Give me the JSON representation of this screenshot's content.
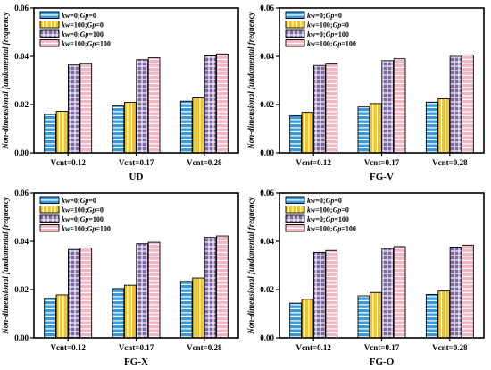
{
  "chart_data": [
    {
      "type": "bar",
      "title": "UD",
      "ylabel": "Non-dimensional fundamental frequency",
      "ylim": [
        0,
        0.06
      ],
      "yticks": [
        "0.00",
        "0.02",
        "0.04",
        "0.06"
      ],
      "categories": [
        "Vcnt=0.12",
        "Vcnt=0.17",
        "Vcnt=0.28"
      ],
      "legend_position": "top-left",
      "series": [
        {
          "name": "kw=0;Gp=0",
          "color": "#3a9ad9",
          "pattern": "horizontal-lines",
          "values": [
            0.016,
            0.0194,
            0.0214
          ]
        },
        {
          "name": "kw=100;Gp=0",
          "color": "#f5c518",
          "pattern": "vertical-lines",
          "values": [
            0.0172,
            0.0209,
            0.0228
          ]
        },
        {
          "name": "kw=0;Gp=100",
          "color": "#8068a8",
          "pattern": "grid",
          "values": [
            0.0364,
            0.0386,
            0.0402
          ]
        },
        {
          "name": "kw=100;Gp=100",
          "color": "#f4b6c2",
          "pattern": "horizontal-lines",
          "values": [
            0.037,
            0.0394,
            0.041
          ]
        }
      ]
    },
    {
      "type": "bar",
      "title": "FG-V",
      "ylabel": "Non-dimensional fundamental frequency",
      "ylim": [
        0,
        0.06
      ],
      "yticks": [
        "0.00",
        "0.02",
        "0.04",
        "0.06"
      ],
      "categories": [
        "Vcnt=0.12",
        "Vcnt=0.17",
        "Vcnt=0.28"
      ],
      "legend_position": "top-left",
      "series": [
        {
          "name": "kw=0;Gp=0",
          "color": "#3a9ad9",
          "pattern": "horizontal-lines",
          "values": [
            0.0154,
            0.019,
            0.021
          ]
        },
        {
          "name": "kw=100;Gp=0",
          "color": "#f5c518",
          "pattern": "vertical-lines",
          "values": [
            0.0168,
            0.0204,
            0.0224
          ]
        },
        {
          "name": "kw=0;Gp=100",
          "color": "#8068a8",
          "pattern": "grid",
          "values": [
            0.0362,
            0.0382,
            0.04
          ]
        },
        {
          "name": "kw=100;Gp=100",
          "color": "#f4b6c2",
          "pattern": "horizontal-lines",
          "values": [
            0.0368,
            0.039,
            0.0406
          ]
        }
      ]
    },
    {
      "type": "bar",
      "title": "FG-X",
      "ylabel": "Non-dimensional fundamental frequency",
      "ylim": [
        0,
        0.06
      ],
      "yticks": [
        "0.00",
        "0.02",
        "0.04",
        "0.06"
      ],
      "categories": [
        "Vcnt=0.12",
        "Vcnt=0.17",
        "Vcnt=0.28"
      ],
      "legend_position": "top-left",
      "series": [
        {
          "name": "kw=0;Gp=0",
          "color": "#3a9ad9",
          "pattern": "horizontal-lines",
          "values": [
            0.0164,
            0.0204,
            0.0234
          ]
        },
        {
          "name": "kw=100;Gp=0",
          "color": "#f5c518",
          "pattern": "vertical-lines",
          "values": [
            0.0178,
            0.0218,
            0.0248
          ]
        },
        {
          "name": "kw=0;Gp=100",
          "color": "#8068a8",
          "pattern": "grid",
          "values": [
            0.0366,
            0.039,
            0.0416
          ]
        },
        {
          "name": "kw=100;Gp=100",
          "color": "#f4b6c2",
          "pattern": "horizontal-lines",
          "values": [
            0.0372,
            0.0396,
            0.0422
          ]
        }
      ]
    },
    {
      "type": "bar",
      "title": "FG-O",
      "ylabel": "Non-dimensional fundamental frequency",
      "ylim": [
        0,
        0.06
      ],
      "yticks": [
        "0.00",
        "0.02",
        "0.04",
        "0.06"
      ],
      "categories": [
        "Vcnt=0.12",
        "Vcnt=0.17",
        "Vcnt=0.28"
      ],
      "legend_position": "top-left",
      "series": [
        {
          "name": "kw=0;Gp=0",
          "color": "#3a9ad9",
          "pattern": "horizontal-lines",
          "values": [
            0.0144,
            0.0174,
            0.018
          ]
        },
        {
          "name": "kw=100;Gp=0",
          "color": "#f5c518",
          "pattern": "vertical-lines",
          "values": [
            0.016,
            0.0188,
            0.0194
          ]
        },
        {
          "name": "kw=0;Gp=100",
          "color": "#8068a8",
          "pattern": "grid",
          "values": [
            0.0354,
            0.037,
            0.0376
          ]
        },
        {
          "name": "kw=100;Gp=100",
          "color": "#f4b6c2",
          "pattern": "horizontal-lines",
          "values": [
            0.0362,
            0.0378,
            0.0384
          ]
        }
      ]
    }
  ]
}
